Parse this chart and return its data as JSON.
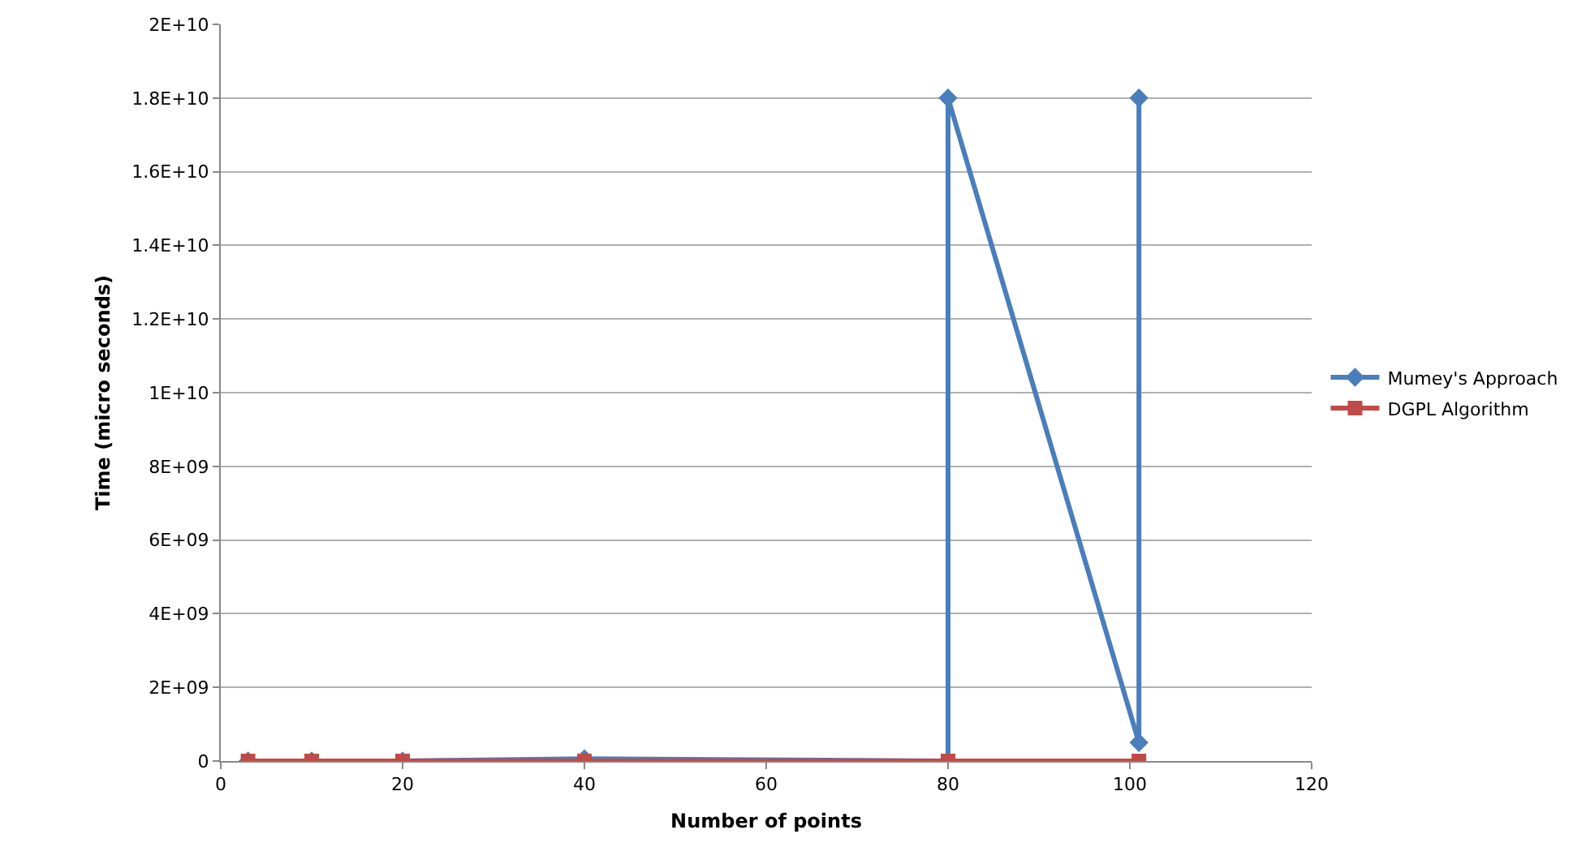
{
  "chart_data": {
    "type": "line",
    "xlabel": "Number of points",
    "ylabel": "Time (micro seconds)",
    "series": [
      {
        "name": "Mumey's Approach",
        "color": "#4a7ebb",
        "x": [
          3,
          10,
          20,
          40,
          80,
          80,
          101,
          101
        ],
        "values": [
          0,
          0,
          0,
          60000000,
          0,
          18000000000,
          500000000,
          18000000000
        ],
        "marker": "diamond"
      },
      {
        "name": "DGPL Algorithm",
        "color": "#be4b48",
        "x": [
          3,
          10,
          20,
          40,
          80,
          101
        ],
        "values": [
          0,
          0,
          0,
          0,
          0,
          0
        ],
        "marker": "square"
      }
    ],
    "xlim": [
      0,
      120
    ],
    "xticks": [
      0,
      20,
      40,
      60,
      80,
      100,
      120
    ],
    "ylim": [
      0,
      20000000000
    ],
    "yticks": [
      {
        "value": 0,
        "label": "0"
      },
      {
        "value": 2000000000,
        "label": "2E+09"
      },
      {
        "value": 4000000000,
        "label": "4E+09"
      },
      {
        "value": 6000000000,
        "label": "6E+09"
      },
      {
        "value": 8000000000,
        "label": "8E+09"
      },
      {
        "value": 10000000000,
        "label": "1E+10"
      },
      {
        "value": 12000000000,
        "label": "1.2E+10"
      },
      {
        "value": 14000000000,
        "label": "1.4E+10"
      },
      {
        "value": 16000000000,
        "label": "1.6E+10"
      },
      {
        "value": 18000000000,
        "label": "1.8E+10"
      },
      {
        "value": 20000000000,
        "label": "2E+10"
      }
    ],
    "grid": "y",
    "legend": "right"
  }
}
